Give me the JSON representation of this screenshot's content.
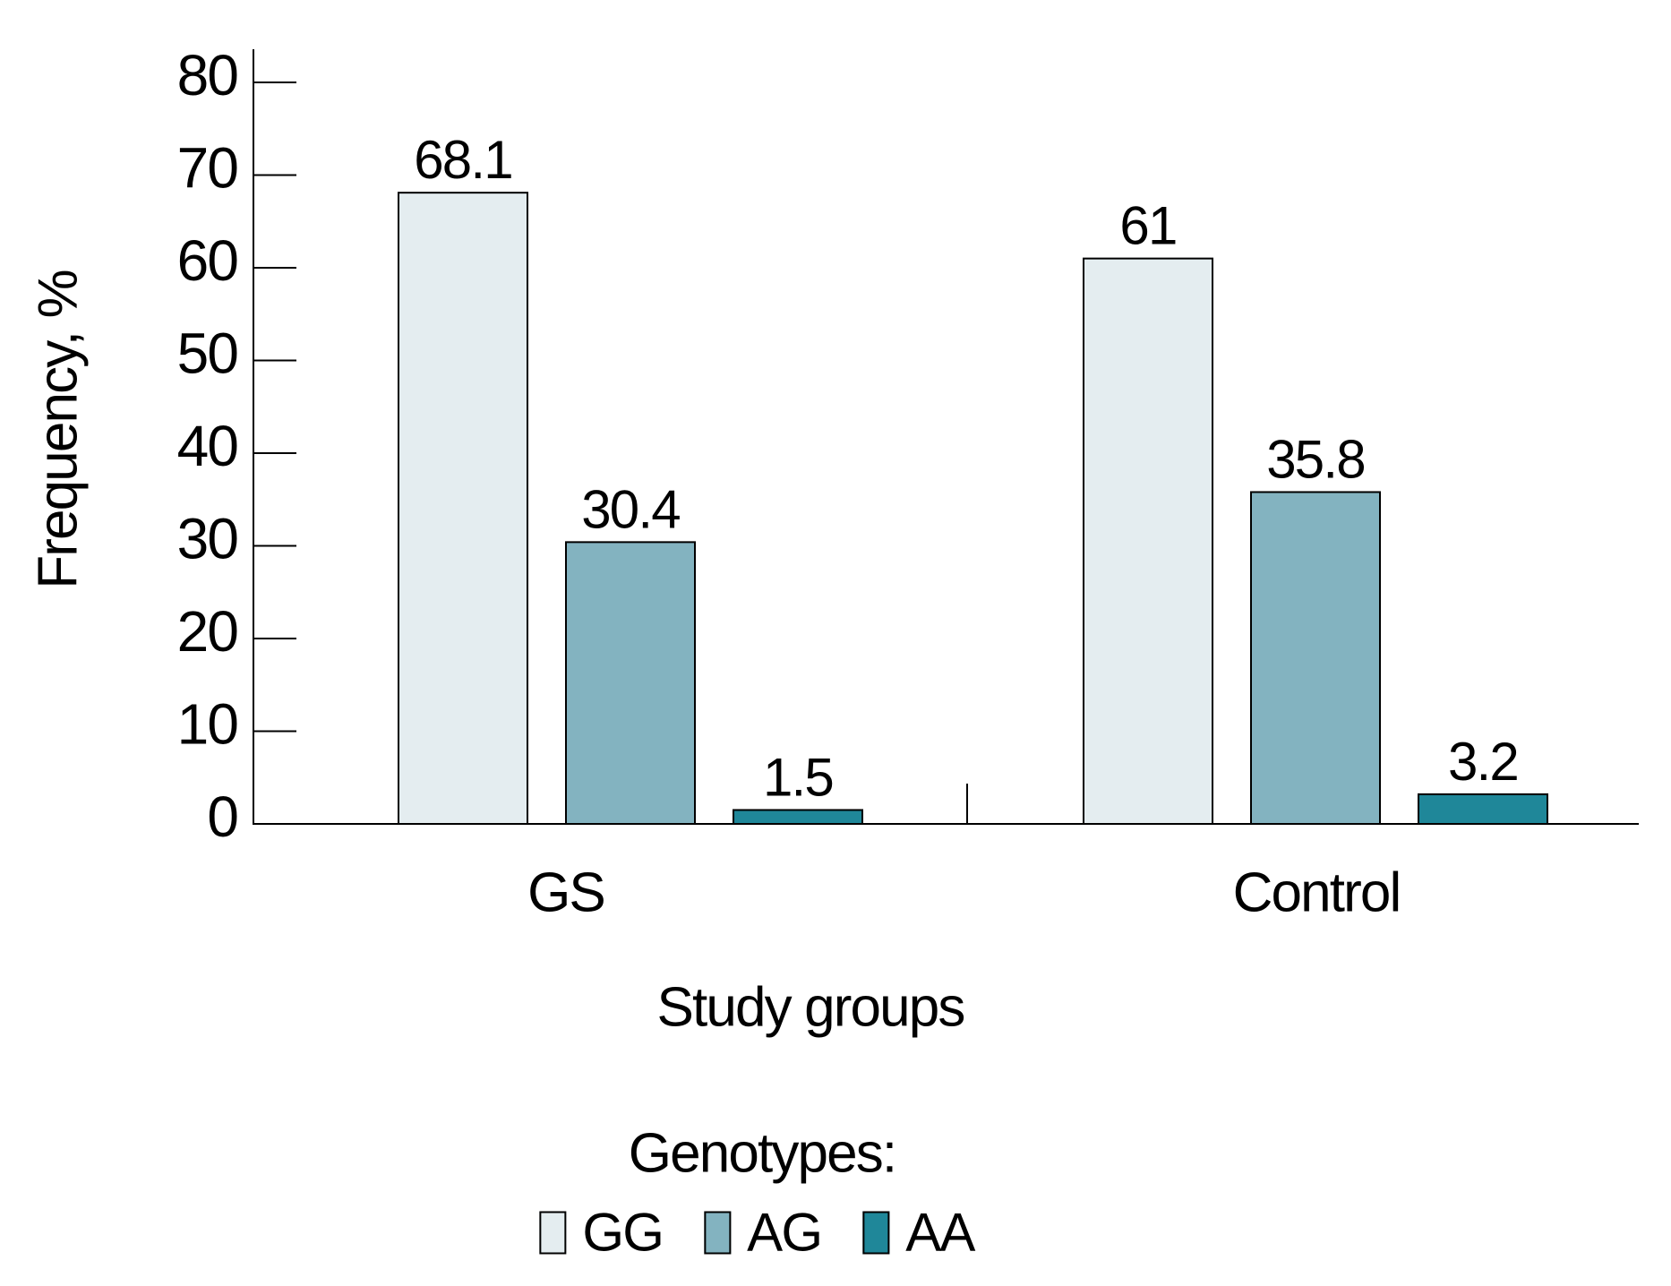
{
  "figure": {
    "background": "#ffffff",
    "text_color": "#000000",
    "axis_line_color": "#000000"
  },
  "chart_data": {
    "type": "bar",
    "title": "",
    "xlabel": "Study groups",
    "ylabel": "Frequency, %",
    "ylim": [
      0,
      80
    ],
    "ytick_interval": 10,
    "yticks": [
      0,
      10,
      20,
      30,
      40,
      50,
      60,
      70,
      80
    ],
    "grid": false,
    "categories": [
      "GS",
      "Control"
    ],
    "series": [
      {
        "name": "GG",
        "color": "#e4edf0",
        "values": [
          68.1,
          61
        ]
      },
      {
        "name": "AG",
        "color": "#83b3c0",
        "values": [
          30.4,
          35.8
        ]
      },
      {
        "name": "AA",
        "color": "#1f8799",
        "values": [
          1.5,
          3.2
        ]
      }
    ],
    "value_labels": [
      [
        "68.1",
        "30.4",
        "1.5"
      ],
      [
        "61",
        "35.8",
        "3.2"
      ]
    ],
    "legend": {
      "title": "Genotypes:",
      "position": "bottom",
      "entries": [
        "GG",
        "AG",
        "AA"
      ]
    }
  }
}
